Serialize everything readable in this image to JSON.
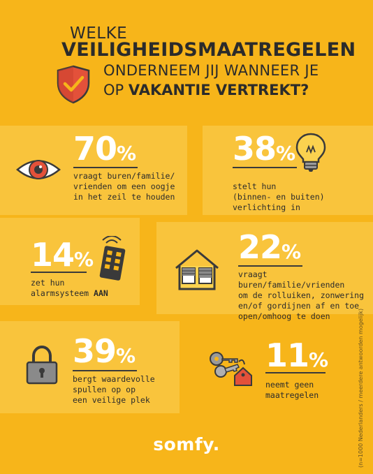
{
  "header": {
    "line1": "WELKE",
    "line2": "VEILIGHEIDSMAATREGELEN",
    "line3": "ONDERNEEM JIJ WANNEER JE",
    "line4_prefix": "OP ",
    "line4_bold": "VAKANTIE VERTREKT?"
  },
  "stats": [
    {
      "value": "70",
      "unit": "%",
      "lines": [
        "vraagt buren/familie/",
        "vrienden om een oogje",
        "in het zeil te houden"
      ]
    },
    {
      "value": "38",
      "unit": "%",
      "lines": [
        "stelt hun",
        "(binnen- en buiten)",
        "verlichting in"
      ]
    },
    {
      "value": "14",
      "unit": "%",
      "lines": [
        "zet hun",
        "alarmsysteem "
      ],
      "bold": "AAN"
    },
    {
      "value": "22",
      "unit": "%",
      "lines": [
        "vraagt buren/familie/vrienden",
        "om de rolluiken, zonwering",
        "en/of gordijnen af en toe",
        "open/omhoog te doen"
      ]
    },
    {
      "value": "39",
      "unit": "%",
      "lines": [
        "bergt waardevolle",
        "spullen op op",
        "een veilige plek"
      ]
    },
    {
      "value": "11",
      "unit": "%",
      "lines": [
        "neemt geen",
        "maatregelen"
      ]
    }
  ],
  "icons": [
    "shield-check-icon",
    "eye-icon",
    "lightbulb-icon",
    "remote-control-icon",
    "house-icon",
    "padlock-icon",
    "keys-icon"
  ],
  "brand": "somfy.",
  "footnote": "(n=1000 Nederlanders / meerdere antwoorden mogelijk)",
  "colors": {
    "background": "#F7B51A",
    "panel": "#F9C43C",
    "shield": "#E3513A",
    "number": "#FFFFFF",
    "text": "#2B2B2B"
  }
}
